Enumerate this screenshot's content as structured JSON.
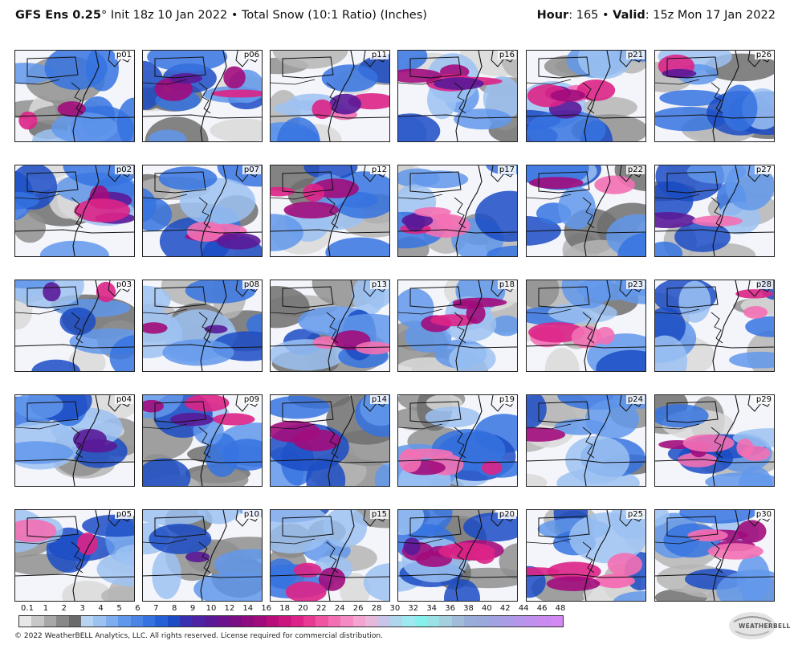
{
  "header": {
    "model": "GFS Ens 0.25",
    "degree": "°",
    "init": " Init 18z 10 Jan 2022 • Total Snow (10:1 Ratio) (Inches)",
    "hour_label": "Hour",
    "hour_value": ": 165 • ",
    "valid_label": "Valid",
    "valid_value": ": 15z Mon 17 Jan 2022"
  },
  "panels": [
    {
      "id": "p01",
      "intensity": 0.25
    },
    {
      "id": "p06",
      "intensity": 0.55
    },
    {
      "id": "p11",
      "intensity": 0.5
    },
    {
      "id": "p16",
      "intensity": 0.6
    },
    {
      "id": "p21",
      "intensity": 0.8
    },
    {
      "id": "p26",
      "intensity": 0.2
    },
    {
      "id": "p02",
      "intensity": 0.5
    },
    {
      "id": "p07",
      "intensity": 0.5
    },
    {
      "id": "p12",
      "intensity": 0.5
    },
    {
      "id": "p17",
      "intensity": 0.7
    },
    {
      "id": "p22",
      "intensity": 0.2
    },
    {
      "id": "p27",
      "intensity": 0.2
    },
    {
      "id": "p03",
      "intensity": 0.3
    },
    {
      "id": "p08",
      "intensity": 0.2
    },
    {
      "id": "p13",
      "intensity": 0.4
    },
    {
      "id": "p18",
      "intensity": 0.6
    },
    {
      "id": "p23",
      "intensity": 0.5
    },
    {
      "id": "p28",
      "intensity": 0.3
    },
    {
      "id": "p04",
      "intensity": 0.3
    },
    {
      "id": "p09",
      "intensity": 0.45
    },
    {
      "id": "p14",
      "intensity": 0.3
    },
    {
      "id": "p19",
      "intensity": 0.6
    },
    {
      "id": "p24",
      "intensity": 0.15
    },
    {
      "id": "p29",
      "intensity": 0.7
    },
    {
      "id": "p05",
      "intensity": 0.3
    },
    {
      "id": "p10",
      "intensity": 0.15
    },
    {
      "id": "p15",
      "intensity": 0.35
    },
    {
      "id": "p20",
      "intensity": 0.85
    },
    {
      "id": "p25",
      "intensity": 0.8
    },
    {
      "id": "p30",
      "intensity": 0.65
    }
  ],
  "colorbar": {
    "colors": [
      "#e8e8e8",
      "#c8c8c8",
      "#a8a8a8",
      "#888888",
      "#6a6a6a",
      "#b8d4f5",
      "#9cc2f2",
      "#7eaef0",
      "#6198eb",
      "#4a85e6",
      "#3673e0",
      "#2560d6",
      "#1b4cc4",
      "#3a2fb0",
      "#4b23a3",
      "#5a1a98",
      "#6b138d",
      "#7a0e85",
      "#8e0c80",
      "#a10c7c",
      "#b80e7c",
      "#cc167f",
      "#dd2387",
      "#e93a93",
      "#f055a3",
      "#f370b4",
      "#f58ac4",
      "#f5a3d1",
      "#e8b8dc",
      "#c9c5e8",
      "#b0d6ee",
      "#9ee8f0",
      "#86f0ec",
      "#9ae2e6",
      "#a4cfdc",
      "#9fbcd8",
      "#98aed8",
      "#9aa8dc",
      "#a2a2e2",
      "#ab9ce6",
      "#b596ea",
      "#bf90ee",
      "#c98bf0",
      "#d388f2"
    ],
    "ticks": [
      "0.1",
      "1",
      "2",
      "3",
      "4",
      "5",
      "6",
      "7",
      "8",
      "9",
      "10",
      "12",
      "14",
      "16",
      "18",
      "20",
      "22",
      "24",
      "26",
      "28",
      "30",
      "32",
      "34",
      "36",
      "38",
      "40",
      "42",
      "44",
      "46",
      "48"
    ]
  },
  "footer": {
    "copyright": "© 2022 WeatherBELL Analytics, LLC. All rights reserved. License required for commercial distribution.",
    "logo_text": "WEATHERBELL"
  }
}
